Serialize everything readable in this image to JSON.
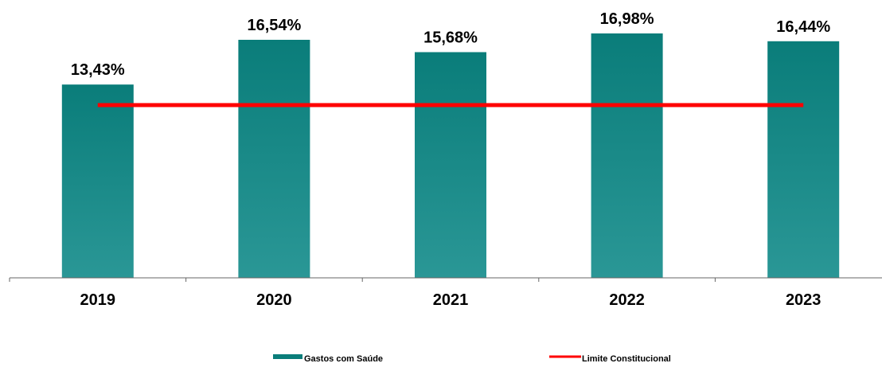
{
  "chart_data": {
    "type": "bar",
    "categories": [
      "2019",
      "2020",
      "2021",
      "2022",
      "2023"
    ],
    "series": [
      {
        "name": "Gastos com Saúde",
        "type": "bar",
        "values": [
          13.43,
          16.54,
          15.68,
          16.98,
          16.44
        ],
        "data_labels": [
          "13,43%",
          "16,54%",
          "15,68%",
          "16,98%",
          "16,44%"
        ]
      },
      {
        "name": "Limite Constitucional",
        "type": "line",
        "values": [
          12,
          12,
          12,
          12,
          12
        ]
      }
    ],
    "title": "",
    "xlabel": "",
    "ylabel": "",
    "ylim": [
      0,
      18
    ],
    "grid": false,
    "legend_position": "bottom",
    "colors": {
      "bar_top": "#0A7D7A",
      "bar_bottom": "#2A9796",
      "line": "#FF0000",
      "axis": "#666666",
      "text": "#000000"
    }
  }
}
